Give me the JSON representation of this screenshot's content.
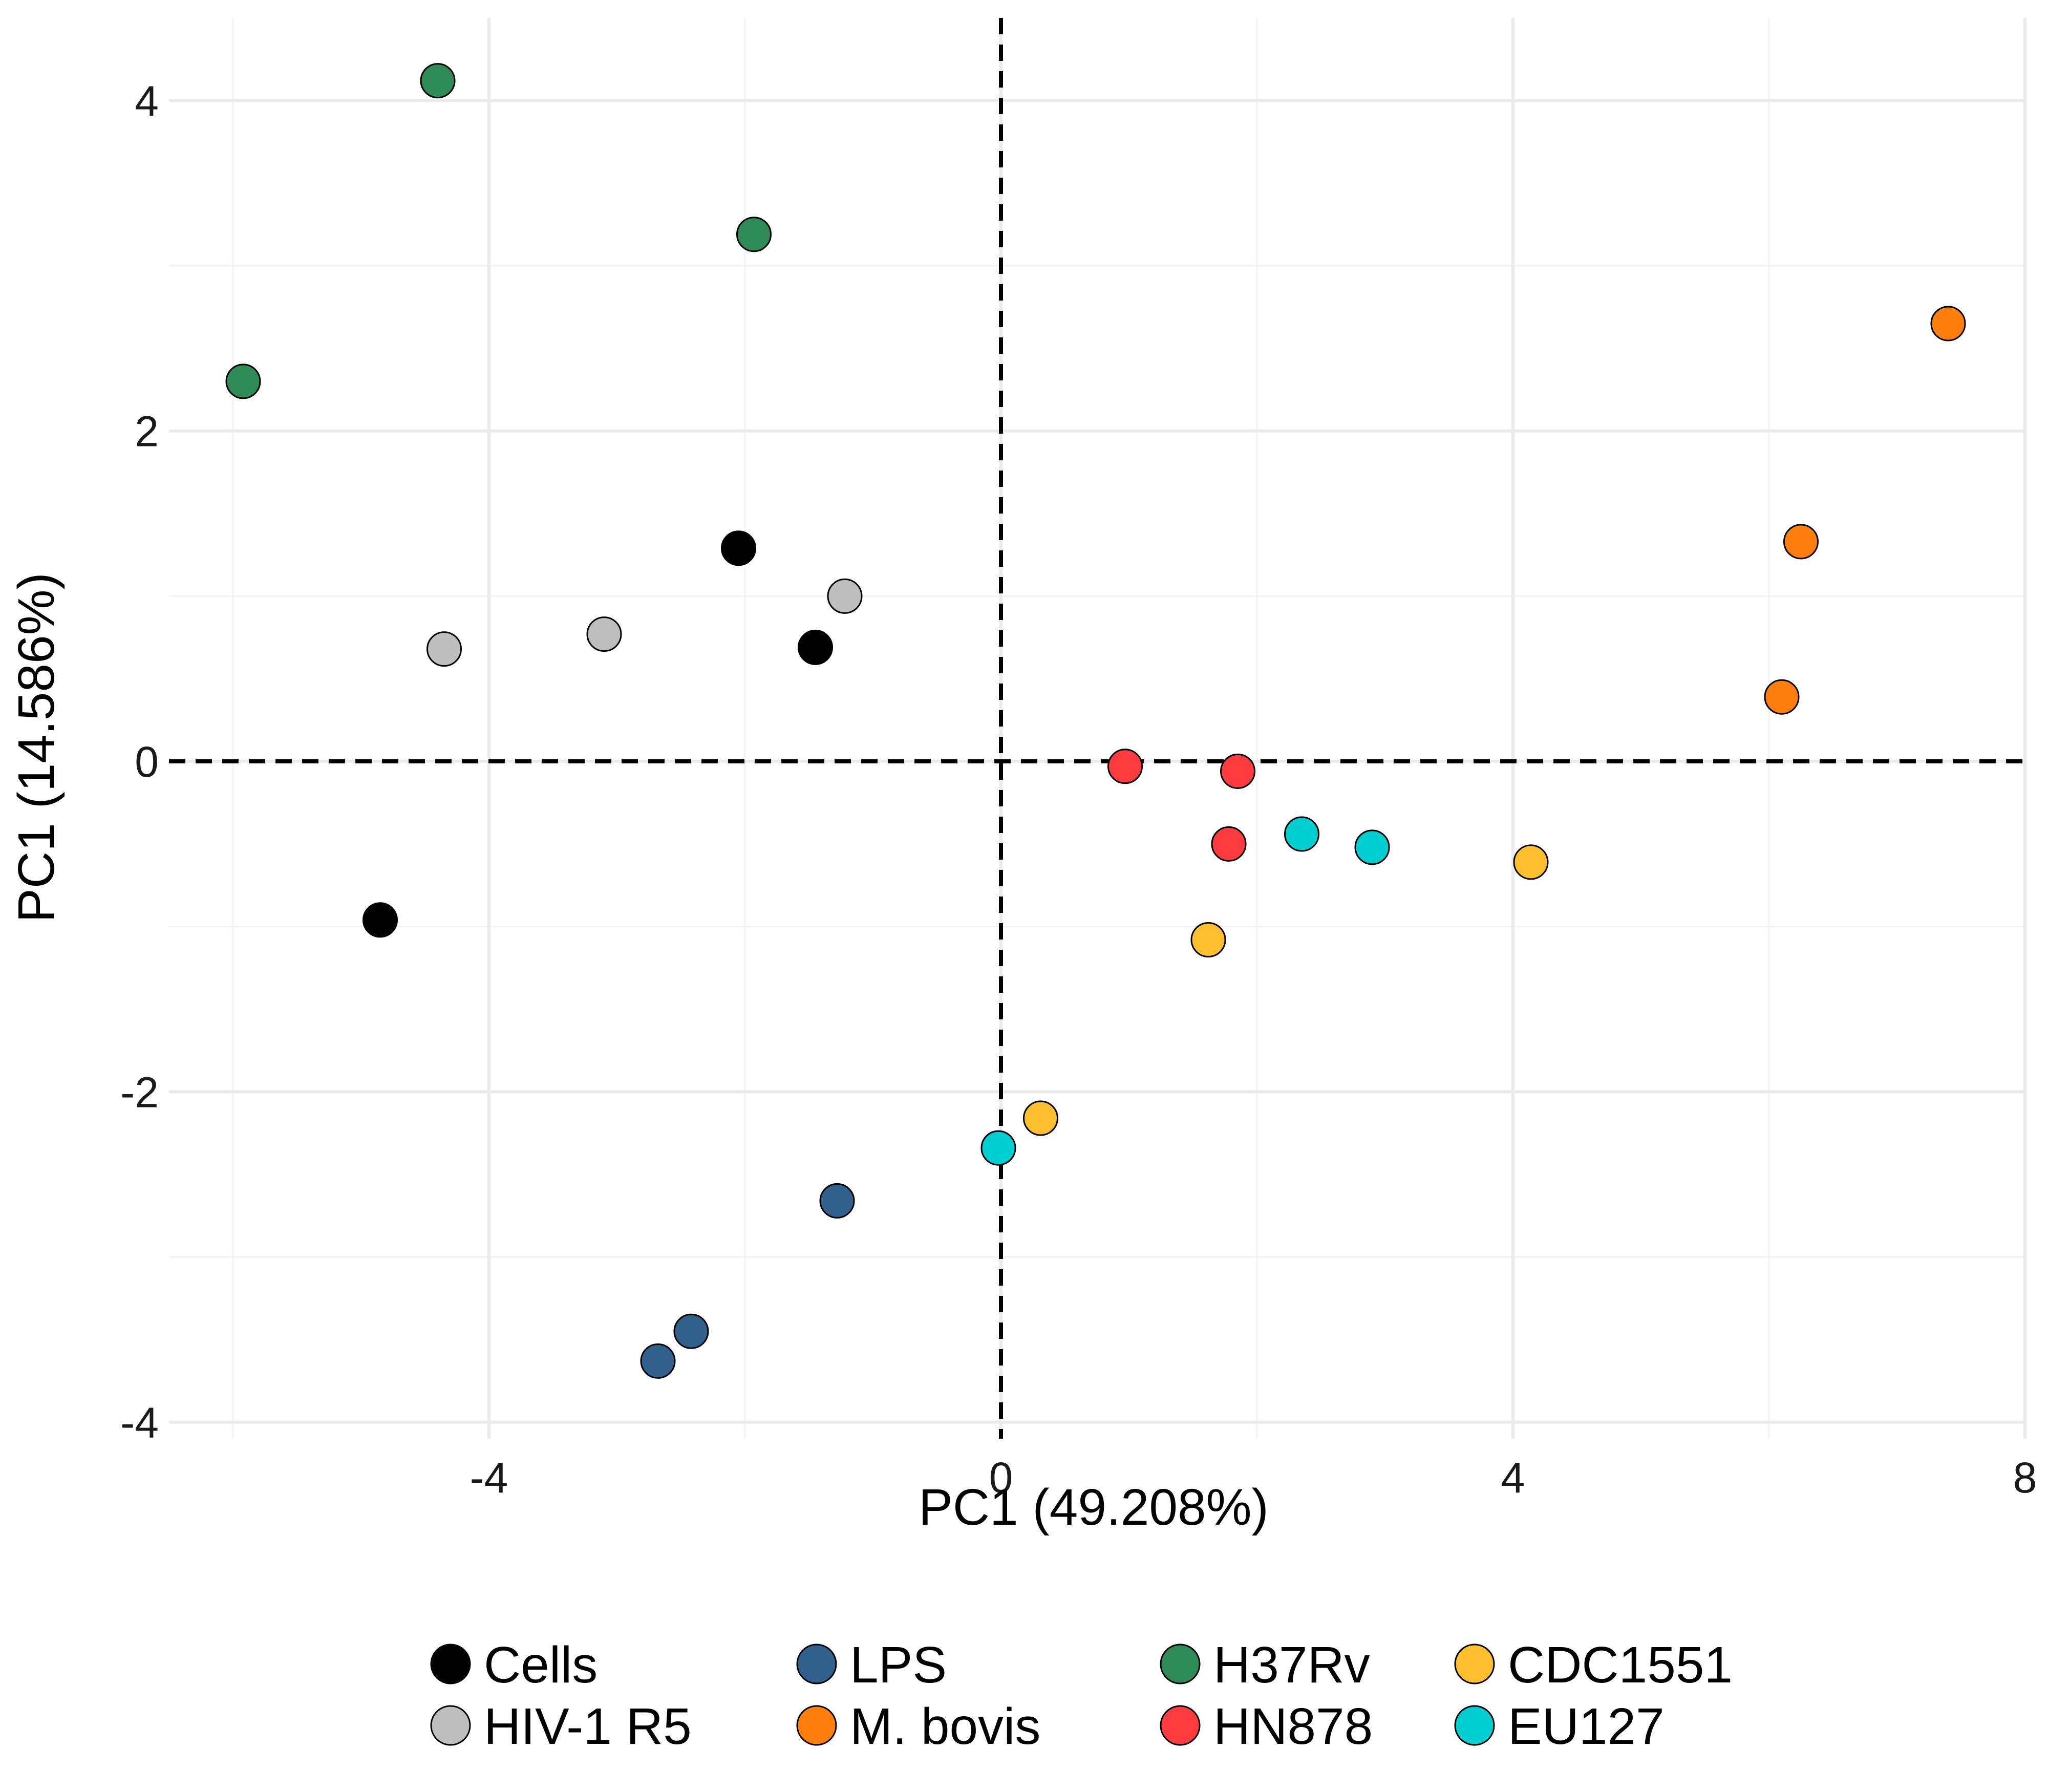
{
  "chart_data": {
    "type": "scatter",
    "xlabel": "PC1 (49.208%)",
    "ylabel": "PC1 (14.586%)",
    "xlim": [
      -6.5,
      8
    ],
    "ylim": [
      -4.1,
      4.5
    ],
    "x_ticks": [
      -4,
      0,
      4,
      8
    ],
    "x_tick_labels": [
      "-4",
      "0",
      "4",
      "8"
    ],
    "y_ticks": [
      -4,
      -2,
      0,
      2,
      4
    ],
    "y_tick_labels": [
      "-4",
      "-2",
      "0",
      "2",
      "4"
    ],
    "x_minor_ticks": [
      -6,
      -2,
      2,
      6
    ],
    "y_minor_ticks": [
      -3,
      -1,
      1,
      3
    ],
    "grid": true,
    "reference_lines": {
      "x": 0,
      "y": 0,
      "style": "dashed"
    },
    "legend_position": "bottom",
    "series": [
      {
        "name": "Cells",
        "color": "#000000",
        "points": [
          [
            -2.05,
            1.29
          ],
          [
            -1.45,
            0.69
          ],
          [
            -4.85,
            -0.96
          ]
        ]
      },
      {
        "name": "HIV-1 R5",
        "color": "#bebebe",
        "points": [
          [
            -4.35,
            0.68
          ],
          [
            -3.1,
            0.77
          ],
          [
            -1.22,
            1.0
          ]
        ]
      },
      {
        "name": "LPS",
        "color": "#31608c",
        "points": [
          [
            -1.28,
            -2.66
          ],
          [
            -2.42,
            -3.45
          ],
          [
            -2.68,
            -3.63
          ]
        ]
      },
      {
        "name": "M. bovis",
        "color": "#ff7f0e",
        "points": [
          [
            7.4,
            2.65
          ],
          [
            6.25,
            1.33
          ],
          [
            6.1,
            0.39
          ]
        ]
      },
      {
        "name": "H37Rv",
        "color": "#2e8b57",
        "points": [
          [
            -4.4,
            4.12
          ],
          [
            -1.93,
            3.19
          ],
          [
            -5.92,
            2.3
          ]
        ]
      },
      {
        "name": "HN878",
        "color": "#ff3b3f",
        "points": [
          [
            0.97,
            -0.03
          ],
          [
            1.85,
            -0.06
          ],
          [
            1.78,
            -0.5
          ]
        ]
      },
      {
        "name": "CDC1551",
        "color": "#fdbf2d",
        "points": [
          [
            4.14,
            -0.61
          ],
          [
            1.62,
            -1.08
          ],
          [
            0.31,
            -2.16
          ]
        ]
      },
      {
        "name": "EU127",
        "color": "#00ced1",
        "points": [
          [
            2.35,
            -0.44
          ],
          [
            2.9,
            -0.52
          ],
          [
            -0.02,
            -2.34
          ]
        ]
      }
    ]
  }
}
